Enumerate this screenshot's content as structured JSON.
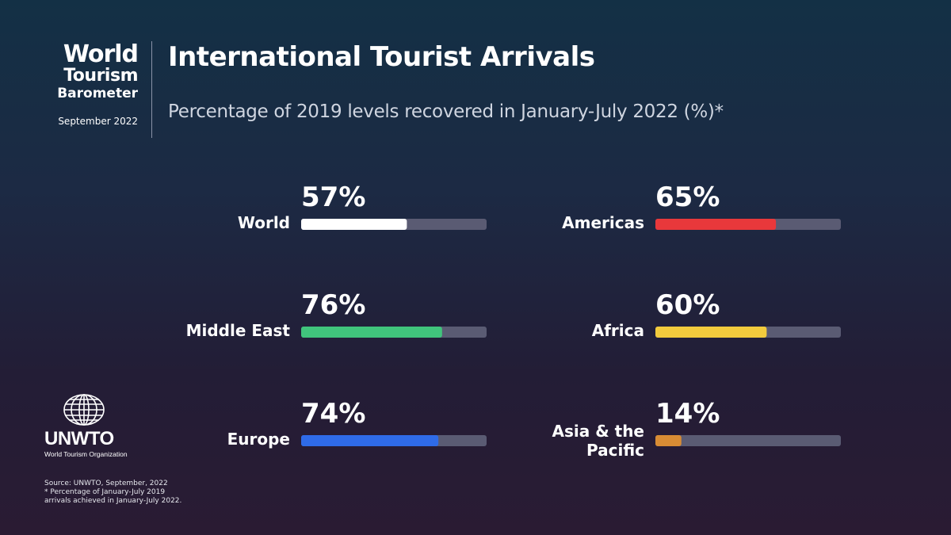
{
  "header": {
    "brand_line1": "World",
    "brand_line2": "Tourism",
    "brand_line3": "Barometer",
    "brand_date": "September 2022",
    "title": "International Tourist Arrivals",
    "subtitle": "Percentage of 2019 levels recovered in January-July 2022 (%)*"
  },
  "colors": {
    "track": "#5a5b73",
    "World": "#ffffff",
    "Americas": "#e8383b",
    "Middle East": "#40c47c",
    "Africa": "#f2cb3d",
    "Europe": "#2f6be8",
    "Asia & the Pacific": "#d88c34"
  },
  "chart_data": {
    "type": "bar",
    "title": "International Tourist Arrivals",
    "subtitle": "Percentage of 2019 levels recovered in January-July 2022 (%)*",
    "unit": "%",
    "ylim": [
      0,
      100
    ],
    "categories": [
      "World",
      "Americas",
      "Middle East",
      "Africa",
      "Europe",
      "Asia & the Pacific"
    ],
    "values": [
      57,
      65,
      76,
      60,
      74,
      14
    ],
    "value_labels": [
      "57%",
      "65%",
      "76%",
      "60%",
      "74%",
      "14%"
    ],
    "label_lines": [
      [
        "World"
      ],
      [
        "Americas"
      ],
      [
        "Middle East"
      ],
      [
        "Africa"
      ],
      [
        "Europe"
      ],
      [
        "Asia & the",
        "Pacific"
      ]
    ],
    "layout": "two-column progress bars"
  },
  "logo": {
    "name": "UNWTO",
    "subtitle": "World Tourism Organization",
    "icon": "globe-icon"
  },
  "footer": {
    "source_line1": "Source: UNWTO, September, 2022",
    "source_line2": "* Percentage of January-July 2019",
    "source_line3": "arrivals achieved in January-July 2022."
  }
}
